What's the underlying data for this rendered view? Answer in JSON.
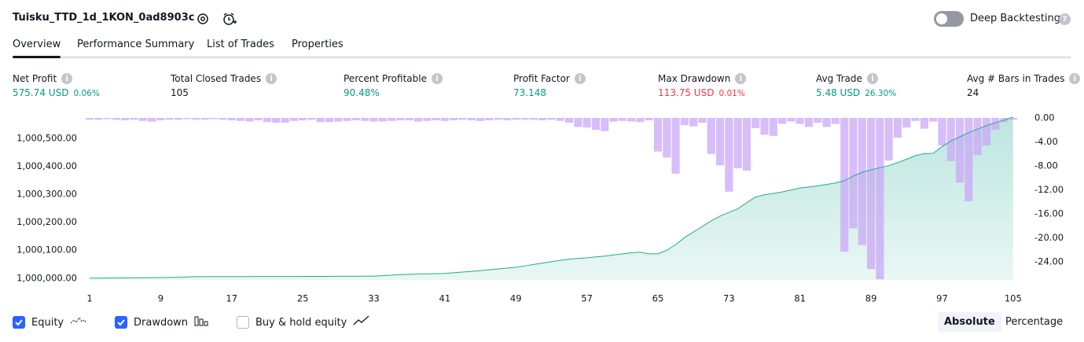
{
  "header": {
    "title": "Tuisku_TTD_1d_1KON_0ad8903c",
    "toggle_label": "Deep Backtesting",
    "toggle_on": false
  },
  "tabs": {
    "items": [
      "Overview",
      "Performance Summary",
      "List of Trades",
      "Properties"
    ],
    "selected": 0
  },
  "metrics": [
    {
      "label": "Net Profit",
      "value": "575.74 USD",
      "sub": "0.06%",
      "color": "#089981"
    },
    {
      "label": "Total Closed Trades",
      "value": "105",
      "color": "#131722"
    },
    {
      "label": "Percent Profitable",
      "value": "90.48%",
      "color": "#089981"
    },
    {
      "label": "Profit Factor",
      "value": "73.148",
      "color": "#089981"
    },
    {
      "label": "Max Drawdown",
      "value": "113.75 USD",
      "sub": "0.01%",
      "color": "#f23645"
    },
    {
      "label": "Avg Trade",
      "value": "5.48 USD",
      "sub": "26.30%",
      "color": "#089981"
    },
    {
      "label": "Avg # Bars in Trades",
      "value": "24",
      "color": "#131722"
    }
  ],
  "chart_data": {
    "type": "line",
    "x": [
      1,
      2,
      3,
      4,
      5,
      6,
      7,
      8,
      9,
      10,
      11,
      12,
      13,
      14,
      15,
      16,
      17,
      18,
      19,
      20,
      21,
      22,
      23,
      24,
      25,
      26,
      27,
      28,
      29,
      30,
      31,
      32,
      33,
      34,
      35,
      36,
      37,
      38,
      39,
      40,
      41,
      42,
      43,
      44,
      45,
      46,
      47,
      48,
      49,
      50,
      51,
      52,
      53,
      54,
      55,
      56,
      57,
      58,
      59,
      60,
      61,
      62,
      63,
      64,
      65,
      66,
      67,
      68,
      69,
      70,
      71,
      72,
      73,
      74,
      75,
      76,
      77,
      78,
      79,
      80,
      81,
      82,
      83,
      84,
      85,
      86,
      87,
      88,
      89,
      90,
      91,
      92,
      93,
      94,
      95,
      96,
      97,
      98,
      99,
      100,
      101,
      102,
      103,
      104,
      105
    ],
    "xlim": [
      0.2,
      105.9
    ],
    "xticks": [
      1,
      9,
      17,
      25,
      33,
      41,
      49,
      57,
      65,
      73,
      81,
      89,
      97,
      105
    ],
    "ylim": [
      999994,
      1000578
    ],
    "yticks": [
      {
        "value": 1000000,
        "label": "1,000,000.00"
      },
      {
        "value": 1000100,
        "label": "1,000,100.00"
      },
      {
        "value": 1000200,
        "label": "1,000,200.00"
      },
      {
        "value": 1000300,
        "label": "1,000,300.00"
      },
      {
        "value": 1000400,
        "label": "1,000,400.00"
      },
      {
        "value": 1000500,
        "label": "1,000,500.00"
      }
    ],
    "y2lim": [
      -27,
      0.26
    ],
    "y2ticks": [
      {
        "value": 0,
        "label": "0.00"
      },
      {
        "value": -4,
        "label": "-4.00"
      },
      {
        "value": -8,
        "label": "-8.00"
      },
      {
        "value": -12,
        "label": "-12.00"
      },
      {
        "value": -16,
        "label": "-16.00"
      },
      {
        "value": -20,
        "label": "-20.00"
      },
      {
        "value": -24,
        "label": "-24.00"
      }
    ],
    "grid": false,
    "series": [
      {
        "name": "Equity",
        "type": "area",
        "color": "#22ab94",
        "checked": true,
        "values": [
          1000000,
          1000000.3,
          1000000.6,
          1000000.9,
          1000001.2,
          1000001.5,
          1000001.8,
          1000002.1,
          1000002.4,
          1000002.8,
          1000003.5,
          1000004.5,
          1000005.5,
          1000005.8,
          1000005.9,
          1000006,
          1000006,
          1000006.1,
          1000006.1,
          1000006.2,
          1000006.2,
          1000006.3,
          1000006.3,
          1000006.4,
          1000006.5,
          1000006.6,
          1000006.7,
          1000006.8,
          1000006.9,
          1000007,
          1000007.1,
          1000007.2,
          1000007.5,
          1000009,
          1000011,
          1000013,
          1000014,
          1000015,
          1000015.5,
          1000016,
          1000017,
          1000019.5,
          1000022,
          1000024.5,
          1000027,
          1000030,
          1000033,
          1000036,
          1000039,
          1000044,
          1000049,
          1000054,
          1000059,
          1000064,
          1000068,
          1000071,
          1000073,
          1000076,
          1000079,
          1000083,
          1000087,
          1000091,
          1000093,
          1000087,
          1000087,
          1000100,
          1000120,
          1000145,
          1000165,
          1000185,
          1000205,
          1000222,
          1000235,
          1000248,
          1000270,
          1000290,
          1000298,
          1000303,
          1000308,
          1000315,
          1000322,
          1000326,
          1000330,
          1000335,
          1000340,
          1000348,
          1000365,
          1000378,
          1000387,
          1000395,
          1000402,
          1000413,
          1000425,
          1000438,
          1000445,
          1000446,
          1000470,
          1000490,
          1000505,
          1000520,
          1000533,
          1000545,
          1000555,
          1000565,
          1000575.74
        ]
      },
      {
        "name": "Drawdown",
        "type": "bar",
        "axis": "y2",
        "color": "#c9a7f7",
        "checked": true,
        "values": [
          -0.3,
          -0.3,
          -0.2,
          -0.3,
          -0.4,
          -0.3,
          -0.5,
          -0.6,
          -0.4,
          -0.3,
          -0.3,
          -0.2,
          -0.3,
          -0.3,
          -0.2,
          -0.3,
          -0.4,
          -0.5,
          -0.6,
          -0.4,
          -0.7,
          -0.8,
          -0.8,
          -0.5,
          -0.4,
          -0.3,
          -0.7,
          -0.7,
          -0.6,
          -0.5,
          -0.4,
          -0.5,
          -0.6,
          -0.6,
          -0.5,
          -0.4,
          -0.4,
          -0.6,
          -0.5,
          -0.4,
          -0.5,
          -0.4,
          -0.3,
          -0.4,
          -0.5,
          -0.4,
          -0.3,
          -0.4,
          -0.3,
          -0.3,
          -0.3,
          -0.4,
          -0.3,
          -0.5,
          -0.8,
          -1.5,
          -1.6,
          -2.0,
          -2.2,
          -0.6,
          -0.5,
          -0.6,
          -0.7,
          -0.4,
          -5.6,
          -6.6,
          -9.3,
          -1.2,
          -1.4,
          -0.8,
          -6.0,
          -7.9,
          -12.3,
          -8.4,
          -8.8,
          -1.7,
          -2.8,
          -3.0,
          -1.0,
          -0.6,
          -1.0,
          -1.5,
          -0.8,
          -1.5,
          -1.0,
          -22.3,
          -18.4,
          -21.2,
          -25.2,
          -26.9,
          -7.1,
          -3.3,
          -1.6,
          -0.5,
          -1.8,
          -0.6,
          -4.6,
          -7.2,
          -10.8,
          -13.9,
          -6.2,
          -4.6,
          -2.0,
          -0.7,
          -0.3
        ]
      }
    ],
    "extra_toggle": {
      "label": "Buy & hold equity",
      "checked": false
    },
    "scale_options": [
      "Absolute",
      "Percentage"
    ],
    "scale_selected": 0
  }
}
